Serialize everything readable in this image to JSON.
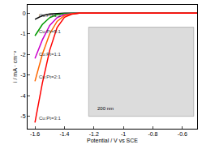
{
  "chart_data": {
    "type": "line",
    "x_label": "Potential / V vs SCE",
    "y_label": "i / mA · cm⁻²",
    "x": [
      -1.6,
      -1.55,
      -1.5,
      -1.45,
      -1.4,
      -1.35,
      -1.3,
      -1.2,
      -1.0,
      -0.8,
      -0.6,
      -0.5
    ],
    "series": [
      {
        "name": "Cu:Pt=1:2",
        "color": "#000000",
        "values": [
          -0.3,
          -0.12,
          -0.04,
          -0.01,
          0,
          0,
          0,
          0,
          0,
          0,
          0,
          0
        ]
      },
      {
        "name": "Cu:Pt=5:1",
        "color": "#009900",
        "values": [
          -1.1,
          -0.55,
          -0.22,
          -0.07,
          -0.02,
          0,
          0,
          0,
          0,
          0,
          0,
          0
        ]
      },
      {
        "name": "Cu:Pt=1:1",
        "color": "#cc00cc",
        "values": [
          -2.2,
          -1.3,
          -0.6,
          -0.22,
          -0.07,
          -0.02,
          0,
          0,
          0,
          0,
          0,
          0
        ]
      },
      {
        "name": "Cu:Pt=2:1",
        "color": "#ff6600",
        "values": [
          -3.3,
          -2.0,
          -1.0,
          -0.4,
          -0.12,
          -0.03,
          0,
          0,
          0,
          0,
          0,
          0
        ]
      },
      {
        "name": "Cu:Pt=3:1",
        "color": "#ff0000",
        "values": [
          -5.3,
          -3.4,
          -1.8,
          -0.7,
          -0.2,
          -0.05,
          0,
          0,
          0,
          0,
          0,
          0
        ]
      }
    ],
    "xlim": [
      -1.65,
      -0.5
    ],
    "xticks": [
      -1.6,
      -1.4,
      -1.2,
      -1.0,
      -0.8,
      -0.6
    ],
    "ylim": [
      -5.6,
      0.4
    ],
    "yticks": [
      0,
      -1,
      -2,
      -3,
      -4,
      -5
    ],
    "annotations": [
      "200 nm"
    ],
    "grid": false
  }
}
